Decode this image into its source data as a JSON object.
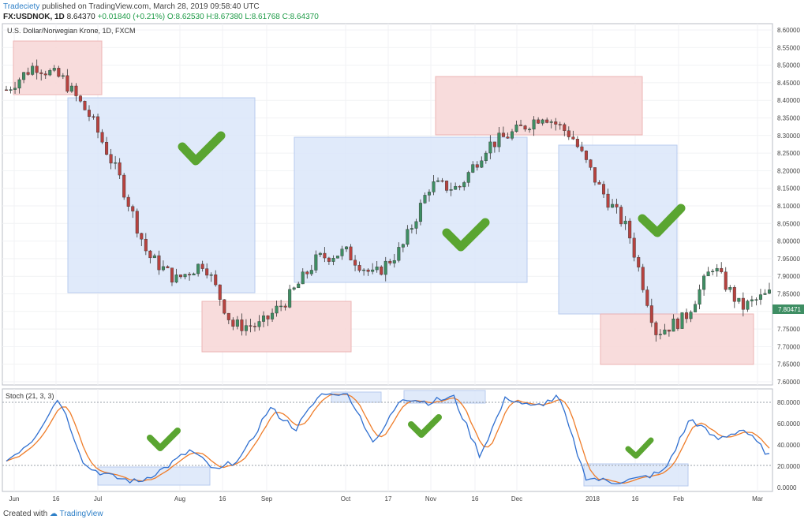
{
  "header": {
    "author": "Tradeciety",
    "published_text": "published on TradingView.com, March 28, 2019 09:58:40 UTC",
    "symbol": "FX:USDNOK, 1D",
    "last": "8.64370",
    "change": "+0.01840 (+0.21%)",
    "open": "O:8.62530",
    "high": "H:8.67380",
    "low": "L:8.61768",
    "close": "C:8.64370"
  },
  "price_pane": {
    "title": "U.S. Dollar/Norwegian Krone, 1D, FXCM",
    "price_axis": [
      "8.60000",
      "8.55000",
      "8.50000",
      "8.45000",
      "8.40000",
      "8.35000",
      "8.30000",
      "8.25000",
      "8.20000",
      "8.15000",
      "8.10000",
      "8.05000",
      "8.00000",
      "7.95000",
      "7.90000",
      "7.85000",
      "7.80000",
      "7.75000",
      "7.70000",
      "7.65000",
      "7.60000"
    ],
    "last_price_label": "7.80471"
  },
  "stoch_pane": {
    "title": "Stoch (21, 3, 3)",
    "axis": [
      "80.0000",
      "60.0000",
      "40.0000",
      "20.0000",
      "0.0000"
    ]
  },
  "time_axis": [
    "Jun",
    "16",
    "Jul",
    "Aug",
    "16",
    "Sep",
    "Oct",
    "17",
    "Nov",
    "16",
    "Dec",
    "2018",
    "16",
    "Feb",
    "Mar"
  ],
  "footer": {
    "created_with": "Created with",
    "brand": "TradingView"
  },
  "colors": {
    "up_candle": "#3e8e63",
    "down_candle": "#b7423f",
    "stoch_k": "#2f6fd0",
    "stoch_d": "#ef7d2a",
    "check": "#5aa531",
    "blue_box": "#dde8fa",
    "red_box": "#f8d9d9"
  },
  "chart_data": {
    "type": "candlestick",
    "title": "U.S. Dollar/Norwegian Krone, 1D, FXCM",
    "xlabel": "",
    "ylabel": "",
    "ylim": [
      7.6,
      8.6
    ],
    "stoch_ylim": [
      0,
      80
    ],
    "approx_close_path": [
      [
        "Jun start",
        8.43
      ],
      [
        "Jun mid",
        8.5
      ],
      [
        "Jun end",
        8.46
      ],
      [
        "Jul",
        8.35
      ],
      [
        "Jul mid",
        8.18
      ],
      [
        "Jul end",
        7.96
      ],
      [
        "Aug",
        7.89
      ],
      [
        "Aug mid",
        7.94
      ],
      [
        "Aug end",
        7.76
      ],
      [
        "Sep",
        7.76
      ],
      [
        "Sep mid",
        7.84
      ],
      [
        "Sep end",
        7.95
      ],
      [
        "Oct",
        7.97
      ],
      [
        "Oct mid",
        7.9
      ],
      [
        "Oct end",
        7.98
      ],
      [
        "Nov",
        8.16
      ],
      [
        "Nov mid",
        8.15
      ],
      [
        "Nov end",
        8.27
      ],
      [
        "Dec",
        8.31
      ],
      [
        "Dec mid",
        8.36
      ],
      [
        "Dec end",
        8.3
      ],
      [
        "2018",
        8.15
      ],
      [
        "Jan mid",
        8.03
      ],
      [
        "Jan end",
        7.74
      ],
      [
        "Feb",
        7.78
      ],
      [
        "Feb mid",
        7.93
      ],
      [
        "Feb end",
        7.81
      ],
      [
        "Mar",
        7.85
      ]
    ],
    "stoch_k_approx": [
      25,
      45,
      85,
      20,
      10,
      5,
      18,
      35,
      15,
      30,
      75,
      55,
      90,
      88,
      40,
      85,
      80,
      85,
      30,
      85,
      75,
      85,
      10,
      5,
      8,
      15,
      65,
      45,
      55,
      30
    ]
  }
}
